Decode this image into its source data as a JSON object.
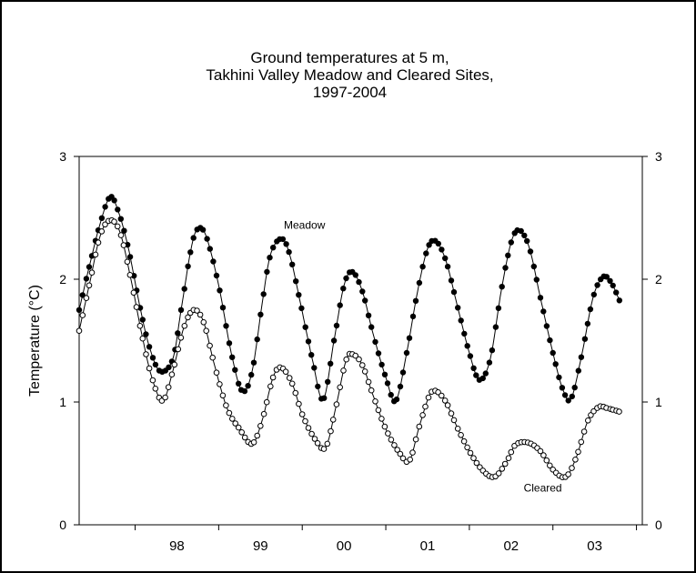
{
  "chart_data": {
    "type": "line",
    "title_lines": [
      "Ground temperatures at 5 m,",
      "Takhini Valley Meadow and Cleared Sites,",
      "1997-2004"
    ],
    "ylabel": "Temperature (°C)",
    "xlabel": "",
    "ylim": [
      0,
      3
    ],
    "y_ticks": [
      "0",
      "1",
      "2",
      "3"
    ],
    "xlim": [
      1997.33,
      2004.07
    ],
    "x_tick_labels": [
      "98",
      "99",
      "00",
      "01",
      "02",
      "03"
    ],
    "x_tick_positions": [
      1998.5,
      1999.5,
      2000.5,
      2001.5,
      2002.5,
      2003.5
    ],
    "x_boundaries": [
      1998,
      1999,
      2000,
      2001,
      2002,
      2003,
      2004
    ],
    "grid": false,
    "series": [
      {
        "name": "Meadow",
        "marker": "filled-circle",
        "points": [
          [
            1997.33,
            1.75
          ],
          [
            1997.45,
            2.1
          ],
          [
            1997.58,
            2.45
          ],
          [
            1997.7,
            2.67
          ],
          [
            1997.8,
            2.55
          ],
          [
            1997.92,
            2.25
          ],
          [
            1998.05,
            1.8
          ],
          [
            1998.17,
            1.45
          ],
          [
            1998.3,
            1.25
          ],
          [
            1998.45,
            1.35
          ],
          [
            1998.55,
            1.75
          ],
          [
            1998.67,
            2.25
          ],
          [
            1998.75,
            2.41
          ],
          [
            1998.85,
            2.35
          ],
          [
            1999.0,
            1.95
          ],
          [
            1999.15,
            1.4
          ],
          [
            1999.28,
            1.09
          ],
          [
            1999.4,
            1.25
          ],
          [
            1999.52,
            1.8
          ],
          [
            1999.62,
            2.2
          ],
          [
            1999.75,
            2.33
          ],
          [
            1999.85,
            2.2
          ],
          [
            1999.98,
            1.8
          ],
          [
            2000.12,
            1.35
          ],
          [
            2000.25,
            1.02
          ],
          [
            2000.38,
            1.5
          ],
          [
            2000.5,
            1.95
          ],
          [
            2000.6,
            2.06
          ],
          [
            2000.72,
            1.9
          ],
          [
            2000.85,
            1.55
          ],
          [
            2001.0,
            1.2
          ],
          [
            2001.12,
            1.01
          ],
          [
            2001.25,
            1.4
          ],
          [
            2001.38,
            1.9
          ],
          [
            2001.5,
            2.25
          ],
          [
            2001.6,
            2.31
          ],
          [
            2001.72,
            2.15
          ],
          [
            2001.85,
            1.8
          ],
          [
            2002.0,
            1.4
          ],
          [
            2002.12,
            1.18
          ],
          [
            2002.25,
            1.35
          ],
          [
            2002.38,
            1.9
          ],
          [
            2002.5,
            2.3
          ],
          [
            2002.6,
            2.4
          ],
          [
            2002.72,
            2.25
          ],
          [
            2002.85,
            1.85
          ],
          [
            2003.0,
            1.4
          ],
          [
            2003.12,
            1.1
          ],
          [
            2003.22,
            1.03
          ],
          [
            2003.35,
            1.4
          ],
          [
            2003.48,
            1.85
          ],
          [
            2003.6,
            2.02
          ],
          [
            2003.7,
            1.97
          ],
          [
            2003.8,
            1.82
          ]
        ]
      },
      {
        "name": "Cleared",
        "marker": "open-circle",
        "points": [
          [
            1997.33,
            1.58
          ],
          [
            1997.45,
            1.95
          ],
          [
            1997.58,
            2.35
          ],
          [
            1997.7,
            2.48
          ],
          [
            1997.82,
            2.38
          ],
          [
            1997.95,
            2.0
          ],
          [
            1998.08,
            1.55
          ],
          [
            1998.2,
            1.2
          ],
          [
            1998.33,
            1.01
          ],
          [
            1998.45,
            1.25
          ],
          [
            1998.58,
            1.6
          ],
          [
            1998.7,
            1.75
          ],
          [
            1998.82,
            1.65
          ],
          [
            1998.95,
            1.3
          ],
          [
            1999.1,
            0.95
          ],
          [
            1999.25,
            0.78
          ],
          [
            1999.4,
            0.66
          ],
          [
            1999.52,
            0.85
          ],
          [
            1999.65,
            1.2
          ],
          [
            1999.75,
            1.28
          ],
          [
            1999.88,
            1.15
          ],
          [
            2000.0,
            0.9
          ],
          [
            2000.15,
            0.7
          ],
          [
            2000.28,
            0.63
          ],
          [
            2000.4,
            0.95
          ],
          [
            2000.52,
            1.33
          ],
          [
            2000.6,
            1.39
          ],
          [
            2000.72,
            1.3
          ],
          [
            2000.85,
            1.05
          ],
          [
            2001.0,
            0.78
          ],
          [
            2001.15,
            0.6
          ],
          [
            2001.28,
            0.52
          ],
          [
            2001.4,
            0.8
          ],
          [
            2001.52,
            1.05
          ],
          [
            2001.6,
            1.09
          ],
          [
            2001.72,
            1.0
          ],
          [
            2001.85,
            0.8
          ],
          [
            2002.0,
            0.6
          ],
          [
            2002.15,
            0.45
          ],
          [
            2002.3,
            0.39
          ],
          [
            2002.45,
            0.52
          ],
          [
            2002.55,
            0.65
          ],
          [
            2002.7,
            0.67
          ],
          [
            2002.85,
            0.6
          ],
          [
            2003.0,
            0.45
          ],
          [
            2003.15,
            0.39
          ],
          [
            2003.28,
            0.55
          ],
          [
            2003.42,
            0.85
          ],
          [
            2003.55,
            0.96
          ],
          [
            2003.65,
            0.95
          ],
          [
            2003.8,
            0.92
          ]
        ]
      }
    ],
    "annotations": [
      {
        "text": "Meadow",
        "x": 1999.78,
        "y": 2.41
      },
      {
        "text": "Cleared",
        "x": 2002.65,
        "y": 0.27
      }
    ]
  }
}
